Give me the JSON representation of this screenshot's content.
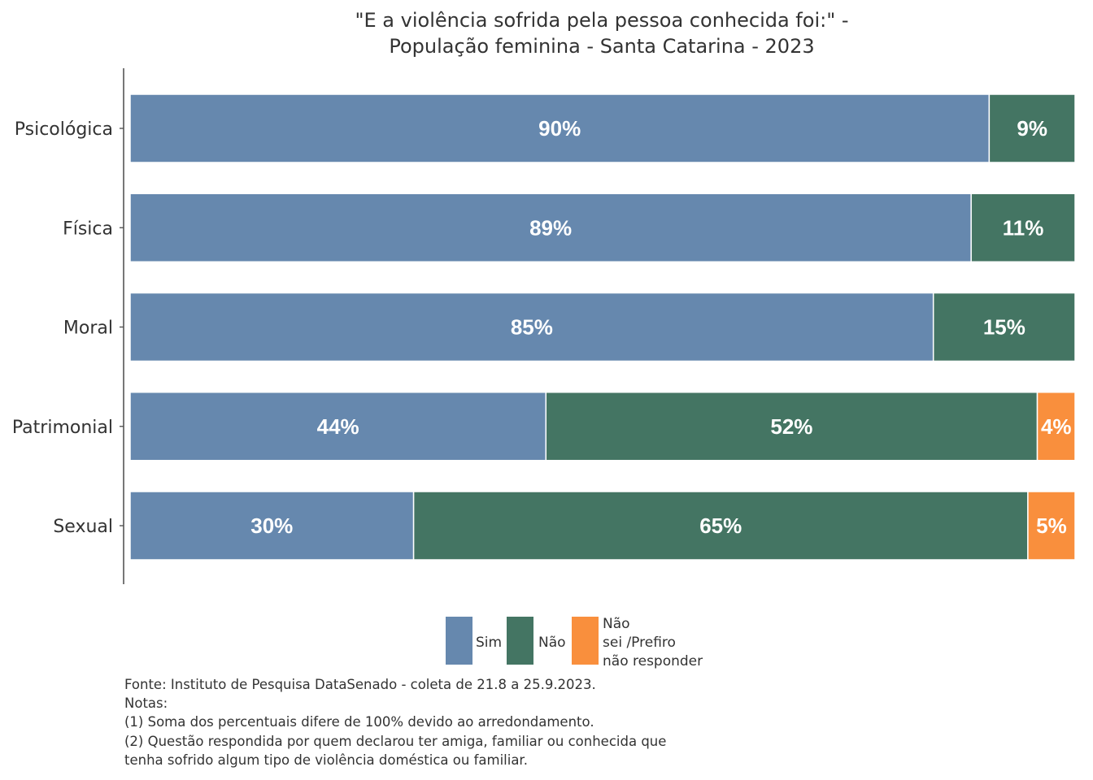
{
  "chart_data": {
    "type": "bar",
    "orientation": "horizontal",
    "stacked": true,
    "title": [
      "\"E a violência sofrida pela pessoa conhecida foi:\" -",
      "População feminina - Santa Catarina - 2023"
    ],
    "categories": [
      "Psicológica",
      "Física",
      "Moral",
      "Patrimonial",
      "Sexual"
    ],
    "series": [
      {
        "name": "Sim",
        "color": "#6688ae",
        "values": [
          90,
          89,
          85,
          44,
          30
        ],
        "labels": [
          "90%",
          "89%",
          "85%",
          "44%",
          "30%"
        ]
      },
      {
        "name": "Não",
        "color": "#447563",
        "values": [
          9,
          11,
          15,
          52,
          65
        ],
        "labels": [
          "9%",
          "11%",
          "15%",
          "52%",
          "65%"
        ]
      },
      {
        "name": "Não sei /Prefiro não responder",
        "legend_lines": [
          "Não",
          "sei /Prefiro",
          "não responder"
        ],
        "color": "#f98f3d",
        "values": [
          0,
          0,
          0,
          4,
          5
        ],
        "labels": [
          "",
          "",
          "",
          "4%",
          "5%"
        ]
      }
    ],
    "xlim": [
      0,
      100
    ],
    "grid": false,
    "legend_position": "bottom"
  },
  "caption": {
    "lines": [
      "Fonte: Instituto de Pesquisa DataSenado - coleta de 21.8 a 25.9.2023.",
      "Notas:",
      "(1) Soma dos percentuais difere de 100% devido ao arredondamento.",
      "(2) Questão respondida por quem declarou ter amiga, familiar ou conhecida que",
      "tenha sofrido algum tipo de violência doméstica ou familiar."
    ]
  }
}
